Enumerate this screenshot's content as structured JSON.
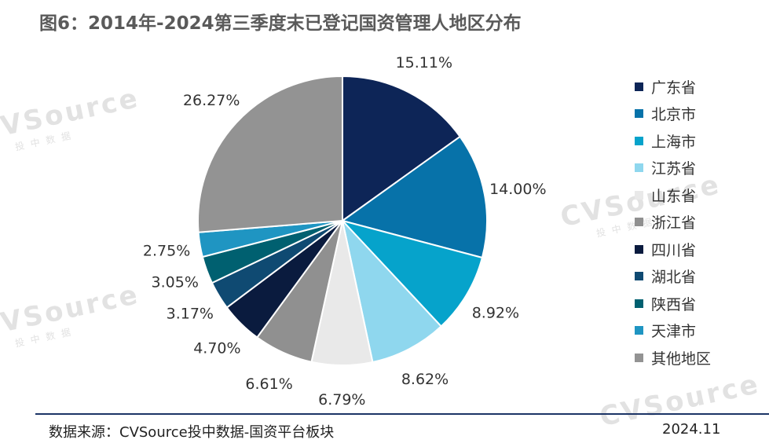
{
  "title": "图6：2014年-2024第三季度末已登记国资管理人地区分布",
  "watermark": {
    "brand": "CVSource",
    "sub": "投中数据"
  },
  "chart_data": {
    "type": "pie",
    "unit": "%",
    "start_angle_deg": 0,
    "direction": "clockwise",
    "slices": [
      {
        "label": "广东省",
        "value": 15.11,
        "display": "15.11%",
        "color": "#0d2557"
      },
      {
        "label": "北京市",
        "value": 14.0,
        "display": "14.00%",
        "color": "#0772a9"
      },
      {
        "label": "上海市",
        "value": 8.92,
        "display": "8.92%",
        "color": "#06a3cb"
      },
      {
        "label": "江苏省",
        "value": 8.62,
        "display": "8.62%",
        "color": "#8fd7ee"
      },
      {
        "label": "山东省",
        "value": 6.79,
        "display": "6.79%",
        "color": "#e9e9e9"
      },
      {
        "label": "浙江省",
        "value": 6.61,
        "display": "6.61%",
        "color": "#909090"
      },
      {
        "label": "四川省",
        "value": 4.7,
        "display": "4.70%",
        "color": "#0a1b3e"
      },
      {
        "label": "湖北省",
        "value": 3.17,
        "display": "3.17%",
        "color": "#0f4a72"
      },
      {
        "label": "陕西省",
        "value": 3.05,
        "display": "3.05%",
        "color": "#006070"
      },
      {
        "label": "天津市",
        "value": 2.75,
        "display": "2.75%",
        "color": "#1f95c2"
      },
      {
        "label": "其他地区",
        "value": 26.27,
        "display": "26.27%",
        "color": "#939393"
      }
    ],
    "legend_position": "right"
  },
  "footer": {
    "source": "数据来源：CVSource投中数据-国资平台板块",
    "date": "2024.11"
  }
}
